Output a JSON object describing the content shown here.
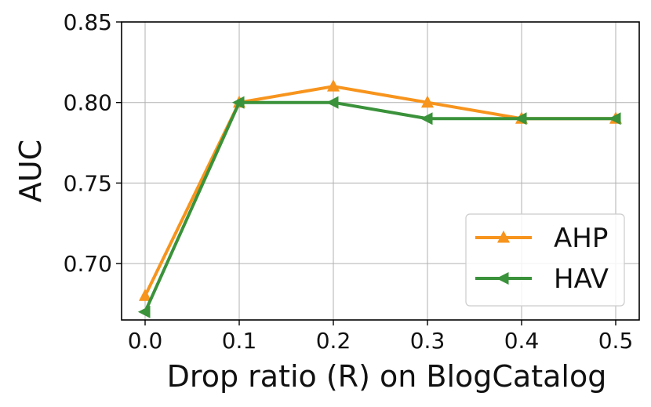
{
  "chart_data": {
    "type": "line",
    "xlabel": "Drop ratio (R) on BlogCatalog",
    "ylabel": "AUC",
    "x": [
      0.0,
      0.1,
      0.2,
      0.3,
      0.4,
      0.5
    ],
    "xticks": [
      "0.0",
      "0.1",
      "0.2",
      "0.3",
      "0.4",
      "0.5"
    ],
    "yticks": [
      "0.70",
      "0.75",
      "0.80",
      "0.85"
    ],
    "xlim": [
      -0.025,
      0.525
    ],
    "ylim": [
      0.665,
      0.85
    ],
    "grid": true,
    "legend_position": "bottom-right",
    "series": [
      {
        "name": "AHP",
        "values": [
          0.68,
          0.8,
          0.81,
          0.8,
          0.79,
          0.79
        ],
        "color": "#f7941d",
        "marker": "triangle-up"
      },
      {
        "name": "HAV",
        "values": [
          0.67,
          0.8,
          0.8,
          0.79,
          0.79,
          0.79
        ],
        "color": "#3a923a",
        "marker": "triangle-left"
      }
    ]
  }
}
